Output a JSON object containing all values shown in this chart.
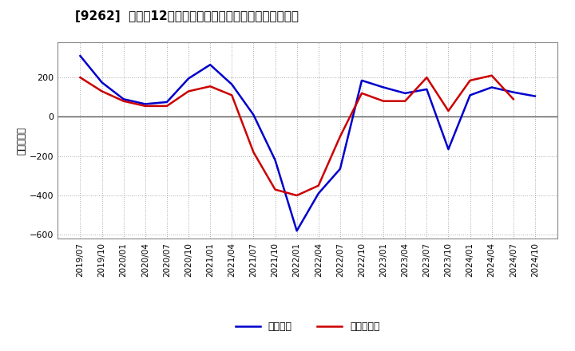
{
  "title": "[9262]  利益だ12か月移動合計の対前年同期増減額の推移",
  "ylabel": "（百万円）",
  "legend_blue": "経常利益",
  "legend_red": "当期純利益",
  "background_color": "#ffffff",
  "plot_bg_color": "#ffffff",
  "grid_color": "#aaaaaa",
  "ylim": [
    -620,
    380
  ],
  "yticks": [
    -600,
    -400,
    -200,
    0,
    200
  ],
  "dates": [
    "2019/07",
    "2019/10",
    "2020/01",
    "2020/04",
    "2020/07",
    "2020/10",
    "2021/01",
    "2021/04",
    "2021/07",
    "2021/10",
    "2022/01",
    "2022/04",
    "2022/07",
    "2022/10",
    "2023/01",
    "2023/04",
    "2023/07",
    "2023/10",
    "2024/01",
    "2024/04",
    "2024/07",
    "2024/10"
  ],
  "blue_values": [
    310,
    175,
    90,
    65,
    75,
    195,
    265,
    165,
    10,
    -220,
    -580,
    -390,
    -265,
    185,
    150,
    120,
    140,
    -165,
    110,
    150,
    125,
    105
  ],
  "red_values": [
    200,
    130,
    80,
    55,
    55,
    130,
    155,
    110,
    -180,
    -370,
    -400,
    -350,
    -100,
    120,
    80,
    80,
    200,
    30,
    185,
    210,
    90,
    null
  ],
  "line_width": 1.8,
  "blue_color": "#0000cc",
  "red_color": "#cc0000",
  "title_fontsize": 11,
  "tick_fontsize": 7.5,
  "ylabel_fontsize": 8.5,
  "legend_fontsize": 9
}
